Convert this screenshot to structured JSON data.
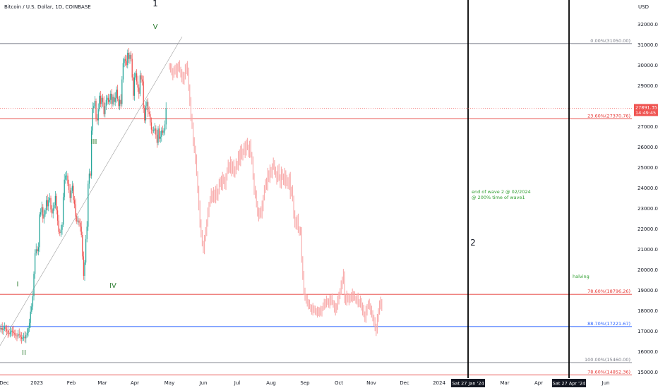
{
  "header": {
    "title": "Bitcoin / U.S. Dollar, 1D, COINBASE",
    "unit": "USD"
  },
  "colors": {
    "up": "#26a69a",
    "down": "#ef5350",
    "projection": "#f8a9a9",
    "fib_grey": "#787b86",
    "fib_red": "#e53935",
    "fib_blue": "#2962ff",
    "wave_green": "#2e7d32"
  },
  "chart_data": {
    "type": "candlestick",
    "title": "Bitcoin / U.S. Dollar, 1D, COINBASE",
    "y_axis": {
      "unit": "USD",
      "range": [
        14700,
        32700
      ],
      "ticks": [
        "32000.00",
        "31000.00",
        "30000.00",
        "29000.00",
        "28000.00",
        "27000.00",
        "26000.00",
        "25000.00",
        "24000.00",
        "23000.00",
        "22000.00",
        "21000.00",
        "20000.00",
        "19000.00",
        "18000.00",
        "17000.00",
        "16000.00",
        "15000.00"
      ],
      "position": "right",
      "grid": false
    },
    "x_axis": {
      "ticks": [
        "Dec",
        "2023",
        "Feb",
        "Mar",
        "Apr",
        "May",
        "Jun",
        "Jul",
        "Aug",
        "Sep",
        "Oct",
        "Nov",
        "Dec",
        "2024",
        "Mar",
        "Apr",
        "Jun"
      ]
    },
    "price_tag": {
      "price": "27891.35",
      "countdown": "14:49:45"
    },
    "fib_levels": [
      {
        "label": "0.00%(31050.00)",
        "price": 31050.0,
        "color": "#787b86"
      },
      {
        "label": "23.60%(27370.76)",
        "price": 27370.76,
        "color": "#e53935"
      },
      {
        "label": "78.60%(18796.26)",
        "price": 18796.26,
        "color": "#e53935"
      },
      {
        "label": "88.70%(17221.67)",
        "price": 17221.67,
        "color": "#2962ff"
      },
      {
        "label": "100.00%(15460.00)",
        "price": 15460.0,
        "color": "#787b86"
      },
      {
        "label": "78.60%(14852.36)",
        "price": 14852.36,
        "color": "#e53935"
      }
    ],
    "vertical_markers": [
      "Sat 27 Jan '24",
      "Sat 27 Apr '24"
    ],
    "wave_labels": {
      "I": "I",
      "II": "II",
      "III": "III",
      "IV": "IV",
      "V": "V",
      "wave1": "1",
      "wave2": "2"
    },
    "annotations": {
      "end_wave2_line1": "end of wave 2 @ 02/2024",
      "end_wave2_line2": "@ 200% time of wave1",
      "halving": "halving"
    },
    "series": [
      {
        "name": "",
        "kind": "actual",
        "start_day": 0,
        "closes": [
          17080,
          17150,
          17050,
          17120,
          17180,
          17100,
          17000,
          16900,
          16850,
          16950,
          17020,
          16980,
          16900,
          16830,
          16780,
          16750,
          16850,
          16820,
          16700,
          16620,
          16680,
          16720,
          16650,
          16800,
          16900,
          17150,
          17400,
          17950,
          18200,
          18700,
          19800,
          20800,
          21000,
          20900,
          21100,
          22700,
          22800,
          23050,
          22500,
          22700,
          22900,
          23400,
          23100,
          23400,
          23500,
          22950,
          22750,
          23000,
          23150,
          23600,
          22900,
          22400,
          21850,
          21800,
          21950,
          22200,
          23550,
          24400,
          24600,
          24600,
          24200,
          23900,
          23500,
          23850,
          24100,
          23400,
          23200,
          22600,
          22350,
          22400,
          22300,
          22100,
          21700,
          20650,
          19700,
          20350,
          21500,
          22100,
          24200,
          24700,
          24600,
          26800,
          27900,
          28000,
          28250,
          27400,
          27300,
          27850,
          28500,
          28100,
          28400,
          28200,
          27600,
          28000,
          28300,
          28400,
          28200,
          28300,
          28600,
          28100,
          28450,
          28200,
          28400,
          28800,
          28350,
          28000,
          28300,
          28100,
          29300,
          30100,
          30300,
          30200,
          30000,
          30600,
          30300,
          30500,
          30300,
          29400,
          28500,
          29400,
          29600,
          29200,
          28900,
          28600,
          29500,
          29300,
          29200,
          27900,
          27300,
          28000,
          28200,
          27700,
          27600,
          27200,
          26850,
          26800,
          26800,
          26900,
          26600,
          26200,
          26900,
          26400,
          26500,
          26800,
          26700,
          26800,
          27100,
          27900
        ]
      },
      {
        "name": "",
        "kind": "projection",
        "start_day": 150,
        "closes": [
          29900,
          29800,
          29700,
          29500,
          29700,
          29900,
          29600,
          29800,
          30000,
          29800,
          29600,
          29400,
          29200,
          29500,
          29800,
          30000,
          29600,
          28900,
          28200,
          27500,
          27000,
          26200,
          25900,
          25400,
          24700,
          23900,
          23100,
          22300,
          21700,
          21300,
          21000,
          21500,
          21800,
          22300,
          22800,
          23200,
          23400,
          23700,
          23500,
          23800,
          23400,
          23900,
          23600,
          23800,
          24200,
          24400,
          24100,
          24500,
          24300,
          24100,
          24600,
          24800,
          25100,
          24900,
          25300,
          24800,
          25100,
          24700,
          24900,
          25200,
          25000,
          25600,
          25300,
          25900,
          25500,
          25800,
          26000,
          25700,
          26200,
          26000,
          25700,
          26100,
          25600,
          25300,
          24600,
          23900,
          23600,
          23200,
          22800,
          22600,
          22900,
          22700,
          23100,
          23500,
          23900,
          24300,
          24100,
          24700,
          24400,
          24900,
          24700,
          25000,
          25200,
          24800,
          24700,
          24400,
          24900,
          24500,
          24200,
          24800,
          24500,
          24300,
          24700,
          24200,
          24400,
          24100,
          24500,
          23700,
          23900,
          23500,
          22700,
          22300,
          22100,
          22500,
          22000,
          21900,
          21800,
          20500,
          19700,
          19000,
          18600,
          18500,
          18400,
          18300,
          18200,
          18100,
          18000,
          18100,
          18000,
          17950,
          18000,
          17900,
          17850,
          18000,
          17950,
          18100,
          18200,
          18300,
          18400,
          18500,
          18400,
          18300,
          18500,
          18600,
          18400,
          18300,
          18100,
          18000,
          18200,
          18500,
          18800,
          18900,
          19200,
          19500,
          19800,
          18600,
          18400,
          18700,
          18600,
          18500,
          18700,
          18600,
          18800,
          18700,
          18600,
          18500,
          18600,
          18400,
          18300,
          18500,
          18200,
          18000,
          17800,
          17600,
          18000,
          18200,
          18300,
          18200,
          18000,
          17900,
          17600,
          17400,
          17200,
          17000,
          17600,
          18000,
          18300,
          18400,
          18100
        ]
      }
    ]
  }
}
